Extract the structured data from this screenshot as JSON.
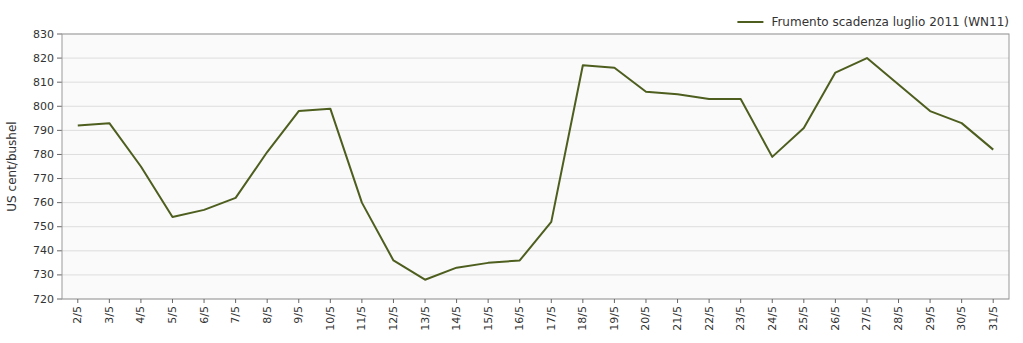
{
  "chart_data": {
    "type": "line",
    "ylabel": "US cent/bushel",
    "categories": [
      "2/5",
      "3/5",
      "4/5",
      "5/5",
      "6/5",
      "7/5",
      "8/5",
      "9/5",
      "10/5",
      "11/5",
      "12/5",
      "13/5",
      "14/5",
      "15/5",
      "16/5",
      "17/5",
      "18/5",
      "19/5",
      "20/5",
      "21/5",
      "22/5",
      "23/5",
      "24/5",
      "25/5",
      "26/5",
      "27/5",
      "28/5",
      "29/5",
      "30/5",
      "31/5"
    ],
    "series": [
      {
        "name": "Frumento scadenza luglio 2011 (WN11)",
        "color": "#4d5e1e",
        "values": [
          792,
          793,
          775,
          754,
          757,
          762,
          781,
          798,
          799,
          760,
          736,
          728,
          733,
          735,
          736,
          752,
          817,
          816,
          806,
          805,
          803,
          803,
          779,
          791,
          814,
          820,
          809,
          798,
          793,
          782
        ]
      }
    ],
    "ylim": [
      720,
      830
    ],
    "yticks": [
      720,
      730,
      740,
      750,
      760,
      770,
      780,
      790,
      800,
      810,
      820,
      830
    ],
    "grid": true,
    "legend": "upper right"
  }
}
